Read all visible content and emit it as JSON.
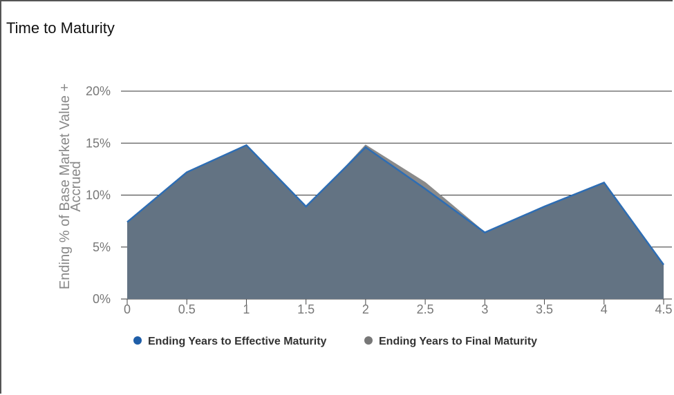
{
  "title": "Time to Maturity",
  "chart_data": {
    "type": "area",
    "title": "Time to Maturity",
    "xlabel": "",
    "ylabel_lines": [
      "Ending % of Base Market Value +",
      "Accrued"
    ],
    "x": [
      0,
      0.5,
      1,
      1.5,
      2,
      2.5,
      3,
      3.5,
      4,
      4.5
    ],
    "x_tick_labels": [
      "0",
      "0.5",
      "1",
      "1.5",
      "2",
      "2.5",
      "3",
      "3.5",
      "4",
      "4.5"
    ],
    "y_tick_labels": [
      "0%",
      "5%",
      "10%",
      "15%",
      "20%"
    ],
    "y_ticks": [
      0,
      5,
      10,
      15,
      20
    ],
    "ylim": [
      0,
      20
    ],
    "grid": true,
    "legend_position": "bottom",
    "series": [
      {
        "name": "Ending Years to Final Maturity",
        "color": "#8a8a8a",
        "values": [
          7.4,
          12.2,
          14.8,
          8.6,
          14.8,
          11.2,
          6.4,
          8.9,
          11.2,
          3.3
        ]
      },
      {
        "name": "Ending Years to Effective Maturity",
        "color": "#2e6db3",
        "values": [
          7.4,
          12.2,
          14.8,
          8.9,
          14.6,
          10.6,
          6.4,
          8.9,
          11.2,
          3.3
        ]
      }
    ],
    "fill_color": "#637383"
  }
}
